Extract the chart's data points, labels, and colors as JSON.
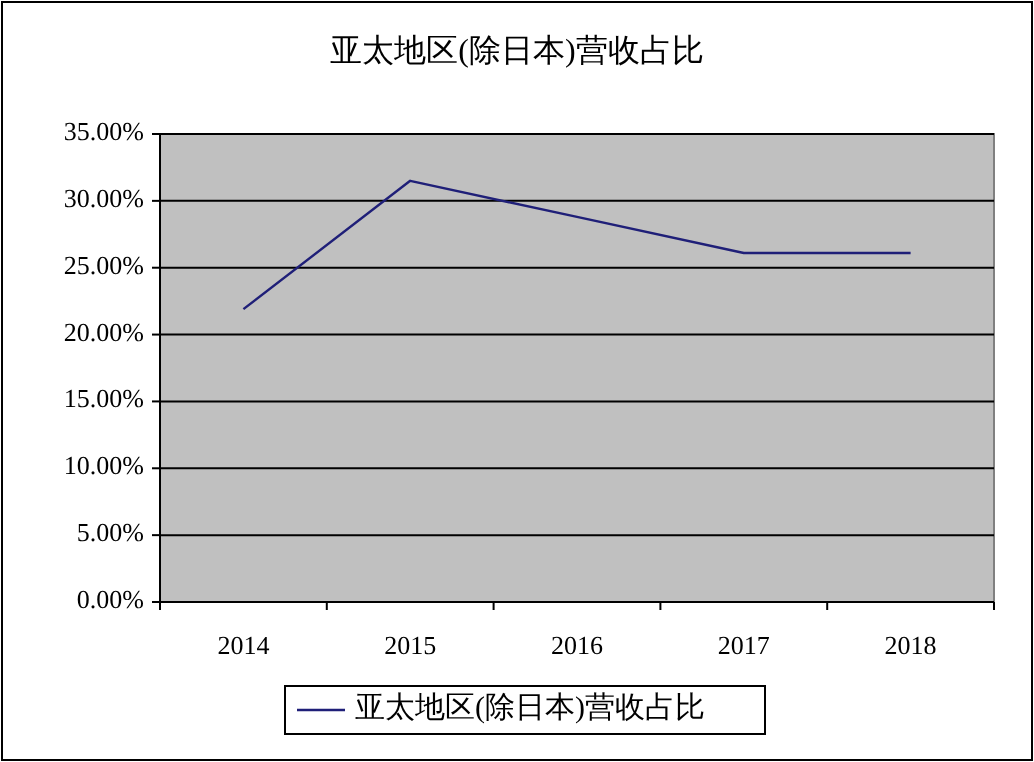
{
  "chart_data": {
    "type": "line",
    "title": "亚太地区(除日本)营收占比",
    "categories": [
      "2014",
      "2015",
      "2016",
      "2017",
      "2018"
    ],
    "series": [
      {
        "name": "亚太地区(除日本)营收占比",
        "color": "#1f1f78",
        "values": [
          21.9,
          31.5,
          28.8,
          26.1,
          26.1
        ]
      }
    ],
    "ylim": [
      0,
      35
    ],
    "yticks": [
      {
        "value": 0,
        "label": "0.00%"
      },
      {
        "value": 5,
        "label": "5.00%"
      },
      {
        "value": 10,
        "label": "10.00%"
      },
      {
        "value": 15,
        "label": "15.00%"
      },
      {
        "value": 20,
        "label": "20.00%"
      },
      {
        "value": 25,
        "label": "25.00%"
      },
      {
        "value": 30,
        "label": "30.00%"
      },
      {
        "value": 35,
        "label": "35.00%"
      }
    ],
    "grid": "y",
    "legend": "bottom"
  }
}
